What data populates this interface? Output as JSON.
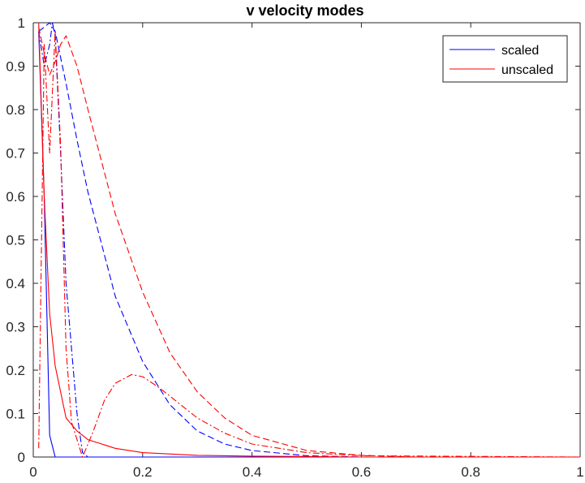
{
  "chart_data": {
    "type": "line",
    "title": "v velocity modes",
    "xlabel": "",
    "ylabel": "",
    "xlim": [
      0,
      1
    ],
    "ylim": [
      0,
      1
    ],
    "grid": false,
    "legend_position": "top-right",
    "x_ticks": [
      "0",
      "0.2",
      "0.4",
      "0.6",
      "0.8",
      "1"
    ],
    "y_ticks": [
      "0",
      "0.1",
      "0.2",
      "0.3",
      "0.4",
      "0.5",
      "0.6",
      "0.7",
      "0.8",
      "0.9",
      "1"
    ],
    "legend": [
      {
        "label": "scaled",
        "color": "#0000ff"
      },
      {
        "label": "unscaled",
        "color": "#ff0000"
      }
    ],
    "series": [
      {
        "group": "scaled",
        "color": "#0000ff",
        "style": "solid",
        "x": [
          0.01,
          0.02,
          0.03,
          0.04,
          0.05,
          1.0
        ],
        "y": [
          0.98,
          0.6,
          0.05,
          0.0,
          0.0,
          0.0
        ]
      },
      {
        "group": "scaled",
        "color": "#0000ff",
        "style": "dashed",
        "x": [
          0.01,
          0.02,
          0.03,
          0.04,
          0.06,
          0.08,
          0.1,
          0.15,
          0.2,
          0.25,
          0.3,
          0.35,
          0.4,
          0.5,
          0.6,
          1.0
        ],
        "y": [
          0.98,
          0.99,
          1.0,
          0.98,
          0.86,
          0.73,
          0.61,
          0.37,
          0.22,
          0.12,
          0.06,
          0.03,
          0.015,
          0.003,
          0.0,
          0.0
        ]
      },
      {
        "group": "scaled",
        "color": "#0000ff",
        "style": "dashdot",
        "x": [
          0.01,
          0.02,
          0.03,
          0.035,
          0.04,
          0.05,
          0.06,
          0.08,
          0.09,
          0.1,
          0.15,
          0.2,
          0.3,
          0.4,
          0.6,
          1.0
        ],
        "y": [
          0.98,
          0.9,
          0.95,
          1.0,
          0.97,
          0.7,
          0.4,
          0.1,
          0.01,
          0.0,
          0.0,
          0.0,
          0.0,
          0.0,
          0.0,
          0.0
        ]
      },
      {
        "group": "unscaled",
        "color": "#ff0000",
        "style": "solid",
        "x": [
          0.01,
          0.02,
          0.03,
          0.04,
          0.06,
          0.08,
          0.1,
          0.15,
          0.2,
          0.3,
          0.4,
          0.6,
          1.0
        ],
        "y": [
          1.0,
          0.6,
          0.33,
          0.21,
          0.09,
          0.06,
          0.04,
          0.02,
          0.01,
          0.004,
          0.002,
          0.0,
          0.0
        ]
      },
      {
        "group": "unscaled",
        "color": "#ff0000",
        "style": "dashed",
        "x": [
          0.01,
          0.02,
          0.03,
          0.04,
          0.05,
          0.06,
          0.08,
          0.1,
          0.15,
          0.2,
          0.25,
          0.3,
          0.35,
          0.4,
          0.5,
          0.6,
          0.7,
          1.0
        ],
        "y": [
          0.99,
          0.93,
          0.88,
          0.91,
          0.95,
          0.97,
          0.9,
          0.8,
          0.56,
          0.38,
          0.24,
          0.15,
          0.09,
          0.05,
          0.015,
          0.004,
          0.0,
          0.0
        ]
      },
      {
        "group": "unscaled",
        "color": "#ff0000",
        "style": "dashdot",
        "x": [
          0.01,
          0.02,
          0.03,
          0.04,
          0.05,
          0.06,
          0.07,
          0.09,
          0.11,
          0.13,
          0.15,
          0.18,
          0.2,
          0.23,
          0.27,
          0.3,
          0.35,
          0.4,
          0.5,
          0.6,
          1.0
        ],
        "y": [
          0.02,
          0.95,
          0.7,
          0.98,
          0.72,
          0.25,
          0.08,
          0.0,
          0.06,
          0.13,
          0.17,
          0.19,
          0.185,
          0.16,
          0.12,
          0.09,
          0.055,
          0.03,
          0.01,
          0.003,
          0.0
        ]
      }
    ]
  }
}
